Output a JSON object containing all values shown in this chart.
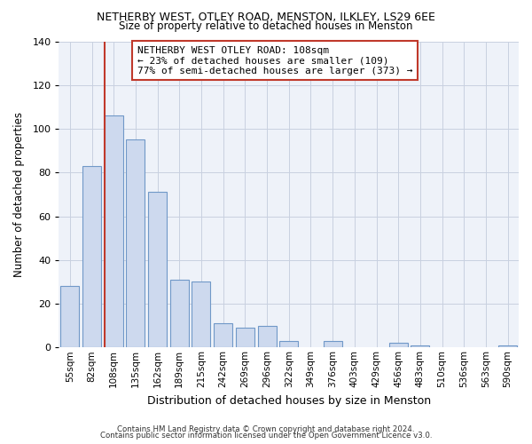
{
  "title1": "NETHERBY WEST, OTLEY ROAD, MENSTON, ILKLEY, LS29 6EE",
  "title2": "Size of property relative to detached houses in Menston",
  "xlabel": "Distribution of detached houses by size in Menston",
  "ylabel": "Number of detached properties",
  "categories": [
    "55sqm",
    "82sqm",
    "108sqm",
    "135sqm",
    "162sqm",
    "189sqm",
    "215sqm",
    "242sqm",
    "269sqm",
    "296sqm",
    "322sqm",
    "349sqm",
    "376sqm",
    "403sqm",
    "429sqm",
    "456sqm",
    "483sqm",
    "510sqm",
    "536sqm",
    "563sqm",
    "590sqm"
  ],
  "values": [
    28,
    83,
    106,
    95,
    71,
    31,
    30,
    11,
    9,
    10,
    3,
    0,
    3,
    0,
    0,
    2,
    1,
    0,
    0,
    0,
    1
  ],
  "bar_color": "#cdd9ee",
  "bar_edge_color": "#7098c8",
  "highlight_index": 2,
  "vline_color": "#c0392b",
  "ylim": [
    0,
    140
  ],
  "yticks": [
    0,
    20,
    40,
    60,
    80,
    100,
    120,
    140
  ],
  "annotation_title": "NETHERBY WEST OTLEY ROAD: 108sqm",
  "annotation_line1": "← 23% of detached houses are smaller (109)",
  "annotation_line2": "77% of semi-detached houses are larger (373) →",
  "footer1": "Contains HM Land Registry data © Crown copyright and database right 2024.",
  "footer2": "Contains public sector information licensed under the Open Government Licence v3.0.",
  "bg_color": "#ffffff",
  "plot_bg_color": "#eef2f9",
  "grid_color": "#c8d0e0"
}
